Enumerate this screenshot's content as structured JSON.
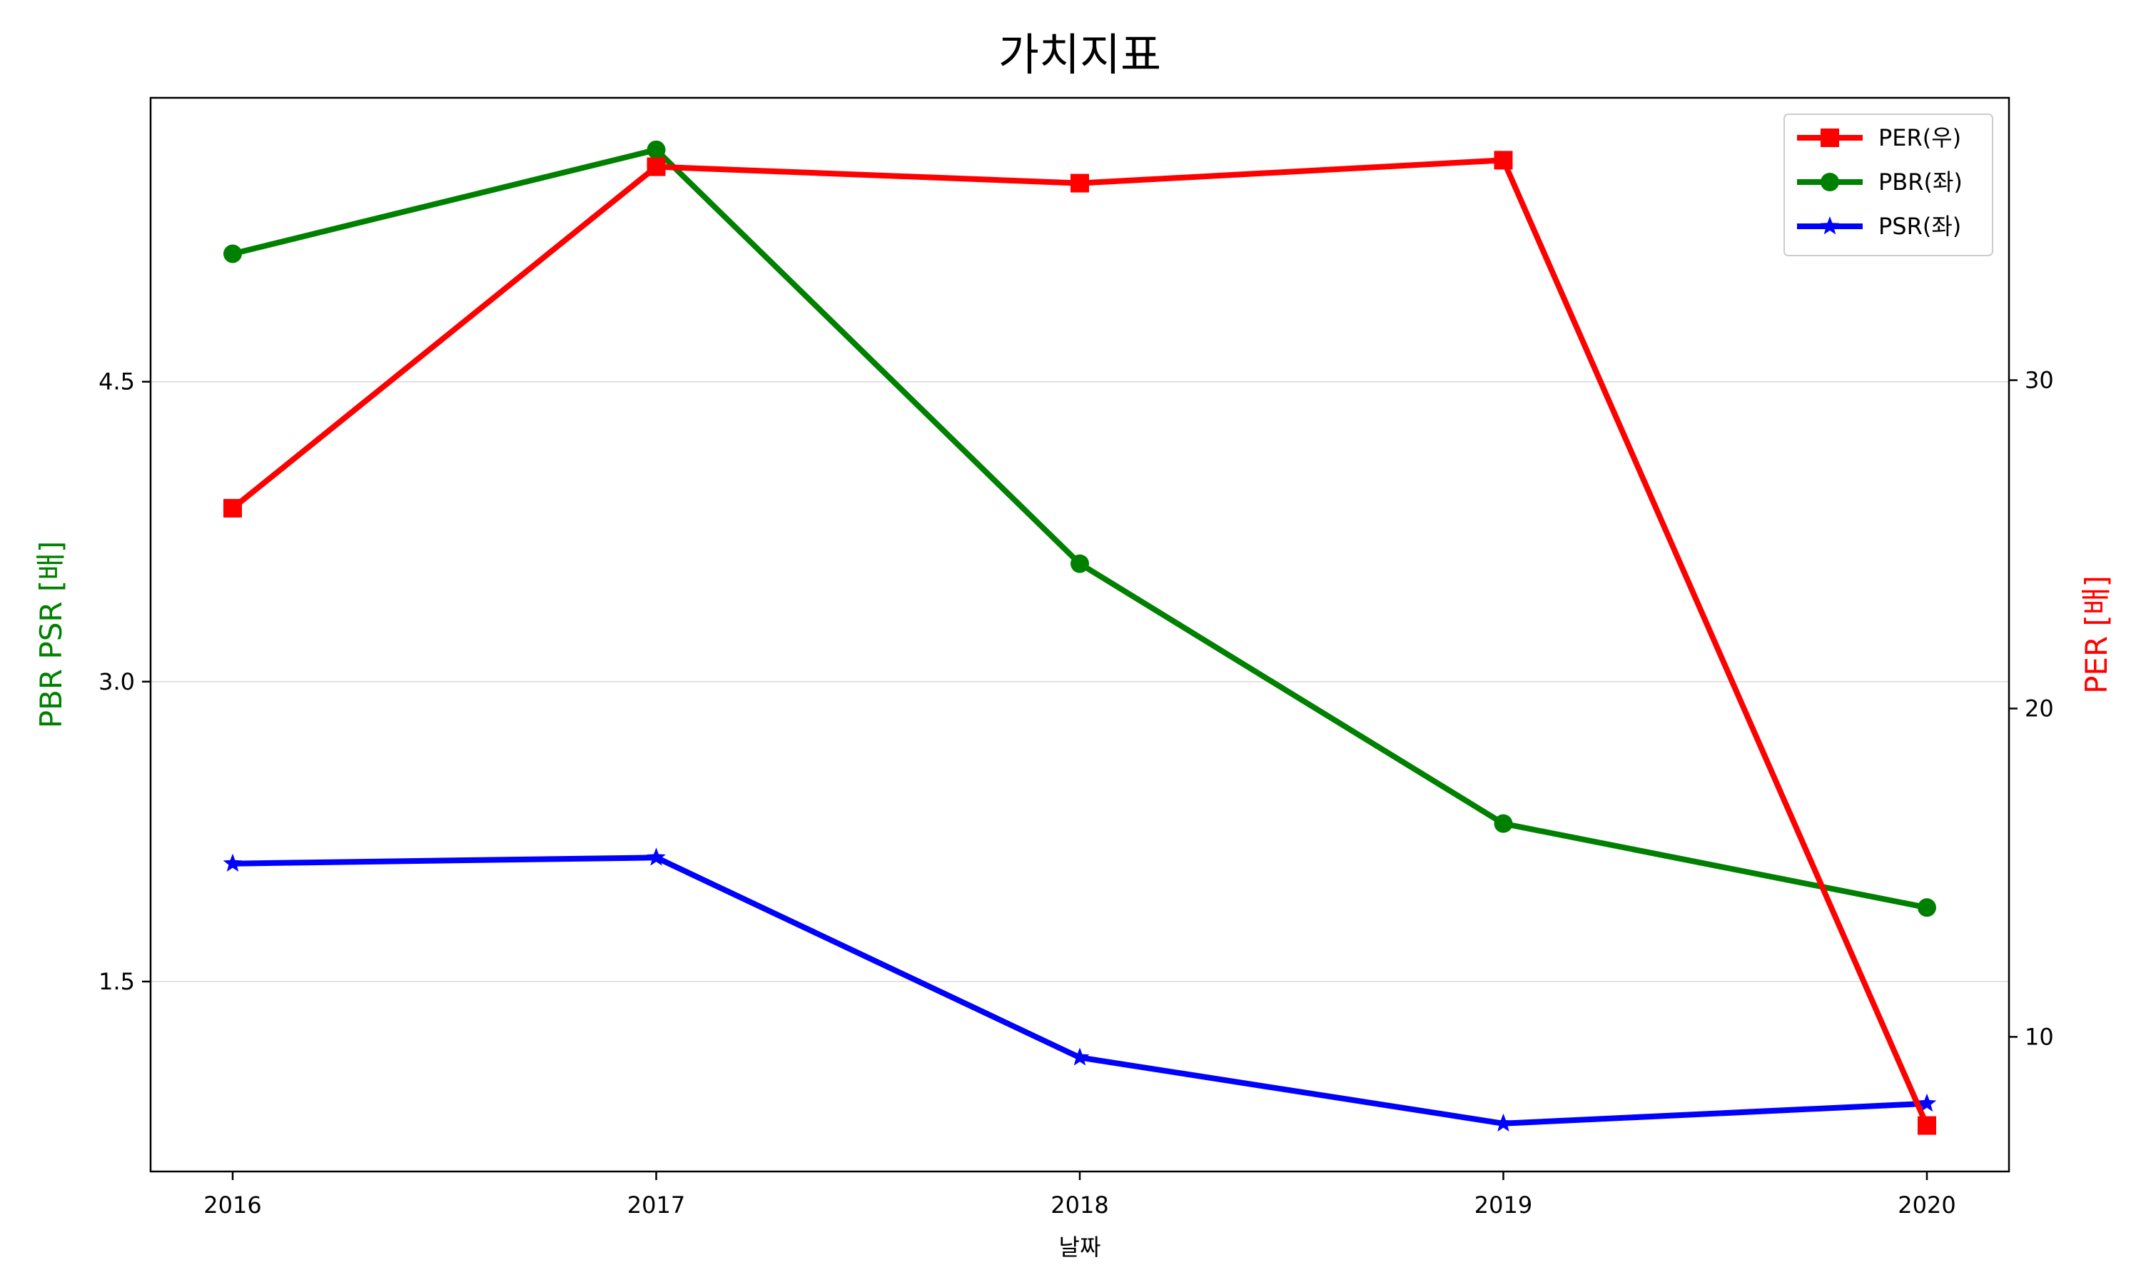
{
  "chart_data": {
    "type": "line",
    "title": "가치지표",
    "xlabel": "날짜",
    "ylabel_left": "PBR PSR [배]",
    "ylabel_right": "PER [배]",
    "categories": [
      "2016",
      "2017",
      "2018",
      "2019",
      "2020"
    ],
    "left_axis": {
      "ylim": [
        0.55,
        5.92
      ],
      "ticks": [
        1.5,
        3.0,
        4.5
      ],
      "tick_labels": [
        "1.5",
        "3.0",
        "4.5"
      ]
    },
    "right_axis": {
      "ylim": [
        5.9,
        38.6
      ],
      "ticks": [
        10,
        20,
        30
      ],
      "tick_labels": [
        "10",
        "20",
        "30"
      ]
    },
    "grid": "horizontal, left axis",
    "legend_position": "top-right",
    "series": [
      {
        "name": "PER(우)",
        "axis": "right",
        "color": "#ff0000",
        "marker": "square",
        "values": [
          26.1,
          36.5,
          36.0,
          36.7,
          7.3
        ]
      },
      {
        "name": "PBR(좌)",
        "axis": "left",
        "color": "#008000",
        "marker": "circle",
        "values": [
          5.14,
          5.66,
          3.59,
          2.29,
          1.87
        ]
      },
      {
        "name": "PSR(좌)",
        "axis": "left",
        "color": "#0000ff",
        "marker": "star",
        "values": [
          2.09,
          2.12,
          1.12,
          0.79,
          0.89
        ]
      }
    ],
    "axis_title_colors": {
      "left": "#008000",
      "right": "#ff0000"
    }
  }
}
